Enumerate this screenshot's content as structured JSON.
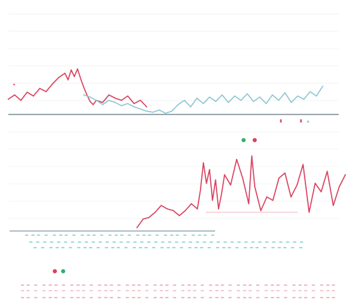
{
  "colors": {
    "red": "#d9415f",
    "red_light": "#f2b6c2",
    "blue": "#8ec7d2",
    "blue_light": "#bfe6e4",
    "teal": "#7fcfc4",
    "green": "#2db36b",
    "axis": "#9aa9ad",
    "grid": "#f1f3f3"
  },
  "top_panel": {
    "left_marker": "•",
    "right_marker": "",
    "status_marks": [
      "▮",
      "▮",
      "▲"
    ]
  },
  "middle_panel": {
    "left_marker": "",
    "legend": [
      {
        "color": "green"
      },
      {
        "color": "red"
      }
    ]
  },
  "bottom_panel": {
    "legend": [
      {
        "color": "red"
      },
      {
        "color": "green"
      }
    ]
  },
  "chart_data": [
    {
      "type": "line",
      "title": "",
      "xlabel": "",
      "ylabel": "",
      "x_range": [
        0,
        100
      ],
      "ylim": [
        0,
        100
      ],
      "grid": true,
      "series": [
        {
          "color": "red",
          "x": [
            0,
            2,
            4,
            6,
            8,
            10,
            12,
            14,
            16,
            18,
            19,
            20,
            21,
            22,
            23,
            24,
            25,
            26,
            27,
            28,
            30,
            32,
            34,
            36,
            38,
            40,
            42,
            44
          ],
          "y": [
            32,
            40,
            30,
            45,
            38,
            52,
            46,
            60,
            72,
            80,
            68,
            86,
            74,
            88,
            70,
            54,
            40,
            28,
            22,
            30,
            26,
            40,
            34,
            30,
            38,
            24,
            30,
            18
          ]
        },
        {
          "color": "blue",
          "x": [
            24,
            26,
            28,
            30,
            32,
            34,
            36,
            38,
            40,
            42,
            44,
            46,
            48,
            50,
            52,
            54,
            56,
            58,
            60,
            62,
            64,
            66,
            68,
            70,
            72,
            74,
            76,
            78,
            80,
            82,
            84,
            86,
            88,
            90,
            92,
            94,
            96,
            98,
            100
          ],
          "y": [
            40,
            36,
            30,
            22,
            30,
            26,
            20,
            24,
            18,
            14,
            10,
            8,
            12,
            6,
            10,
            22,
            30,
            18,
            34,
            24,
            36,
            28,
            40,
            26,
            38,
            30,
            42,
            28,
            36,
            24,
            40,
            30,
            44,
            26,
            38,
            32,
            46,
            38,
            56
          ]
        }
      ]
    },
    {
      "type": "line",
      "title": "",
      "xlabel": "",
      "ylabel": "",
      "x_range": [
        0,
        100
      ],
      "ylim": [
        0,
        100
      ],
      "grid": true,
      "series": [
        {
          "color": "red",
          "x": [
            27,
            29,
            31,
            33,
            35,
            37,
            39,
            41,
            43,
            45,
            47,
            48,
            49,
            50,
            51,
            52,
            53,
            54,
            55,
            56,
            58,
            60,
            62,
            64,
            65,
            66,
            68,
            70,
            72,
            74,
            76,
            78,
            80,
            82,
            84,
            86,
            88,
            90,
            92,
            94,
            96
          ],
          "y": [
            8,
            18,
            20,
            26,
            34,
            30,
            28,
            22,
            28,
            36,
            30,
            52,
            84,
            60,
            76,
            40,
            64,
            30,
            48,
            70,
            58,
            88,
            66,
            36,
            92,
            56,
            28,
            44,
            40,
            66,
            72,
            44,
            58,
            82,
            26,
            60,
            50,
            74,
            34,
            56,
            70
          ]
        },
        {
          "color": "red_light",
          "x": [
            50,
            80
          ],
          "y": [
            26,
            26
          ]
        }
      ]
    }
  ],
  "rows": {
    "teal_rows": 3,
    "red_rows": 3
  }
}
